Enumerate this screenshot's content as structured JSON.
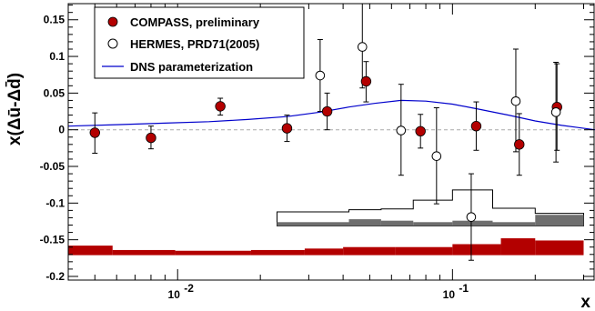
{
  "chart_data": {
    "type": "scatter",
    "xlabel": "x",
    "ylabel": "x(Δū-Δd̄)",
    "xscale": "log",
    "xlim": [
      0.004,
      0.33
    ],
    "ylim": [
      -0.205,
      0.172
    ],
    "grid": false,
    "zero_line": true,
    "legend_position": "top-left",
    "y_ticks": [
      {
        "v": 0.15,
        "label": "0.15"
      },
      {
        "v": 0.1,
        "label": "0.1"
      },
      {
        "v": 0.05,
        "label": "0.05"
      },
      {
        "v": 0,
        "label": "0"
      },
      {
        "v": -0.05,
        "label": "-0.05"
      },
      {
        "v": -0.1,
        "label": "-0.1"
      },
      {
        "v": -0.15,
        "label": "-0.15"
      },
      {
        "v": -0.2,
        "label": "-0.2"
      }
    ],
    "x_ticks": [
      {
        "v": 0.01,
        "label": "10",
        "exp": "-2"
      },
      {
        "v": 0.1,
        "label": "10",
        "exp": "-1"
      }
    ],
    "series": [
      {
        "name": "COMPASS, preliminary",
        "marker": "filled-circle",
        "color": "#b30000",
        "points": [
          {
            "x": 0.005,
            "y": -0.004,
            "lo": -0.032,
            "hi": 0.023
          },
          {
            "x": 0.008,
            "y": -0.011,
            "lo": -0.026,
            "hi": 0.005
          },
          {
            "x": 0.0143,
            "y": 0.032,
            "lo": 0.02,
            "hi": 0.043
          },
          {
            "x": 0.025,
            "y": 0.002,
            "lo": -0.016,
            "hi": 0.02
          },
          {
            "x": 0.035,
            "y": 0.025,
            "lo": 0.0,
            "hi": 0.05
          },
          {
            "x": 0.0485,
            "y": 0.066,
            "lo": 0.038,
            "hi": 0.093
          },
          {
            "x": 0.0765,
            "y": -0.002,
            "lo": -0.025,
            "hi": 0.021
          },
          {
            "x": 0.122,
            "y": 0.005,
            "lo": -0.028,
            "hi": 0.038
          },
          {
            "x": 0.175,
            "y": -0.02,
            "lo": -0.062,
            "hi": 0.022
          },
          {
            "x": 0.24,
            "y": 0.031,
            "lo": -0.028,
            "hi": 0.09
          }
        ]
      },
      {
        "name": "HERMES, PRD71(2005)",
        "marker": "open-circle",
        "color": "#000000",
        "points": [
          {
            "x": 0.033,
            "y": 0.074,
            "lo": 0.025,
            "hi": 0.123
          },
          {
            "x": 0.047,
            "y": 0.113,
            "lo": 0.057,
            "hi": 0.172
          },
          {
            "x": 0.065,
            "y": -0.001,
            "lo": -0.062,
            "hi": 0.062
          },
          {
            "x": 0.0875,
            "y": -0.036,
            "lo": -0.101,
            "hi": 0.03
          },
          {
            "x": 0.117,
            "y": -0.119,
            "lo": -0.178,
            "hi": -0.06
          },
          {
            "x": 0.17,
            "y": 0.039,
            "lo": -0.03,
            "hi": 0.11
          },
          {
            "x": 0.238,
            "y": 0.024,
            "lo": -0.044,
            "hi": 0.092
          }
        ]
      },
      {
        "name": "DNS parameterization",
        "marker": "line",
        "color": "#0000cc",
        "x": [
          0.004,
          0.006,
          0.009,
          0.013,
          0.018,
          0.025,
          0.033,
          0.042,
          0.052,
          0.065,
          0.08,
          0.1,
          0.125,
          0.16,
          0.2,
          0.25,
          0.33
        ],
        "y": [
          0.005,
          0.007,
          0.009,
          0.011,
          0.014,
          0.018,
          0.024,
          0.031,
          0.036,
          0.04,
          0.039,
          0.035,
          0.028,
          0.02,
          0.012,
          0.006,
          0.0
        ]
      }
    ],
    "bands": [
      {
        "name": "COMPASS systematic",
        "fill": "#b30000",
        "stroke": "none",
        "top": -0.171,
        "steps": [
          {
            "x0": 0.004,
            "x1": 0.0058,
            "y": -0.158
          },
          {
            "x0": 0.0058,
            "x1": 0.0098,
            "y": -0.164
          },
          {
            "x0": 0.0098,
            "x1": 0.0185,
            "y": -0.165
          },
          {
            "x0": 0.0185,
            "x1": 0.029,
            "y": -0.164
          },
          {
            "x0": 0.029,
            "x1": 0.04,
            "y": -0.162
          },
          {
            "x0": 0.04,
            "x1": 0.062,
            "y": -0.16
          },
          {
            "x0": 0.062,
            "x1": 0.1,
            "y": -0.16
          },
          {
            "x0": 0.1,
            "x1": 0.15,
            "y": -0.156
          },
          {
            "x0": 0.15,
            "x1": 0.2,
            "y": -0.148
          },
          {
            "x0": 0.2,
            "x1": 0.3,
            "y": -0.151
          }
        ]
      },
      {
        "name": "HERMES systematic",
        "fill": "#ffffff",
        "stroke": "#000000",
        "top": -0.131,
        "steps": [
          {
            "x0": 0.023,
            "x1": 0.042,
            "y": -0.112
          },
          {
            "x0": 0.042,
            "x1": 0.055,
            "y": -0.109
          },
          {
            "x0": 0.055,
            "x1": 0.072,
            "y": -0.108
          },
          {
            "x0": 0.072,
            "x1": 0.1,
            "y": -0.096
          },
          {
            "x0": 0.1,
            "x1": 0.14,
            "y": -0.082
          },
          {
            "x0": 0.14,
            "x1": 0.2,
            "y": -0.107
          },
          {
            "x0": 0.2,
            "x1": 0.3,
            "y": -0.114
          }
        ]
      },
      {
        "name": "HERMES systematic inner",
        "fill": "#6e6e6e",
        "stroke": "none",
        "top": -0.131,
        "steps": [
          {
            "x0": 0.023,
            "x1": 0.042,
            "y": -0.126
          },
          {
            "x0": 0.042,
            "x1": 0.055,
            "y": -0.122
          },
          {
            "x0": 0.055,
            "x1": 0.072,
            "y": -0.124
          },
          {
            "x0": 0.072,
            "x1": 0.1,
            "y": -0.126
          },
          {
            "x0": 0.1,
            "x1": 0.14,
            "y": -0.124
          },
          {
            "x0": 0.14,
            "x1": 0.2,
            "y": -0.126
          },
          {
            "x0": 0.2,
            "x1": 0.3,
            "y": -0.116
          }
        ]
      }
    ]
  }
}
